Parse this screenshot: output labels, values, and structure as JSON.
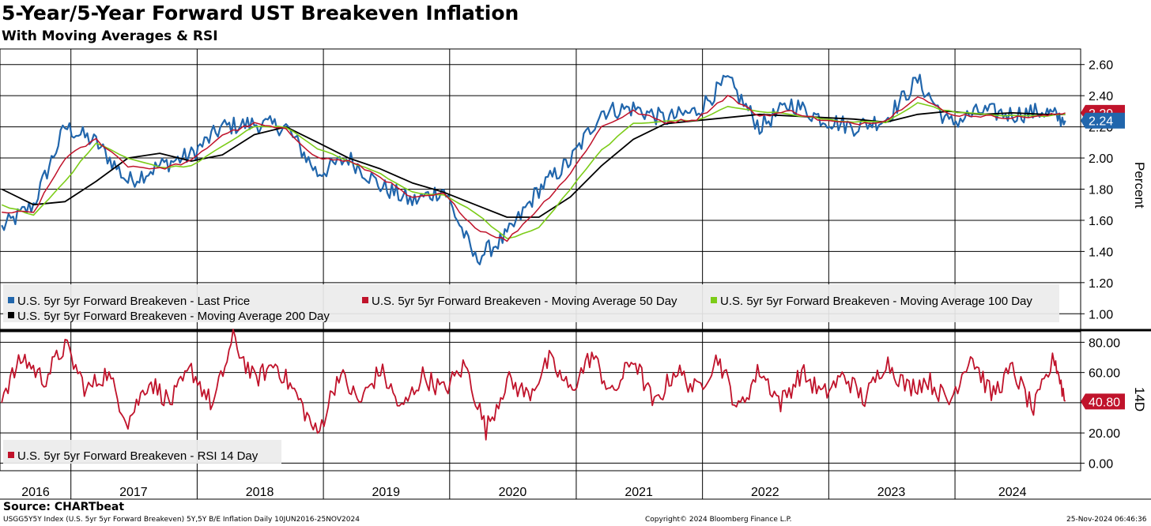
{
  "header": {
    "title": "5-Year/5-Year Forward UST Breakeven Inflation",
    "subtitle": "With Moving Averages & RSI"
  },
  "footer": {
    "source": "Source: CHARTbeat",
    "index_note": "USGG5Y5Y Index (U.S. 5yr 5yr Forward Breakeven) 5Y,5Y B/E Inflation  Daily 10JUN2016-25NOV2024",
    "copyright": "Copyright© 2024 Bloomberg Finance L.P.",
    "timestamp": "25-Nov-2024 06:46:36"
  },
  "colors": {
    "last_price": "#2166ac",
    "ma50": "#c0132b",
    "ma100": "#7ccc18",
    "ma200": "#000000",
    "rsi": "#c0132b",
    "legend_bg": "#ececec"
  },
  "chart_data": [
    {
      "type": "line",
      "panel": "price",
      "x_range": [
        "2016-06-10",
        "2024-11-25"
      ],
      "ylabel": "Percent",
      "ylim": [
        0.9,
        2.7
      ],
      "yticks": [
        "1.00",
        "1.20",
        "1.40",
        "1.60",
        "1.80",
        "2.00",
        "2.20",
        "2.40",
        "2.60"
      ],
      "grid": true,
      "legend_placement": "bottom-left",
      "series": [
        {
          "name": "U.S. 5yr 5yr Forward Breakeven - Last Price",
          "key": "last_price",
          "x": [
            "2016-06",
            "2016-09",
            "2016-12",
            "2017-03",
            "2017-06",
            "2017-09",
            "2017-12",
            "2018-03",
            "2018-06",
            "2018-09",
            "2018-12",
            "2019-03",
            "2019-06",
            "2019-09",
            "2019-12",
            "2020-03",
            "2020-06",
            "2020-09",
            "2020-12",
            "2021-03",
            "2021-06",
            "2021-09",
            "2021-12",
            "2022-03",
            "2022-06",
            "2022-09",
            "2022-12",
            "2023-03",
            "2023-06",
            "2023-09",
            "2023-12",
            "2024-03",
            "2024-06",
            "2024-09",
            "2024-11"
          ],
          "values": [
            1.55,
            1.7,
            2.2,
            2.1,
            1.85,
            1.95,
            2.02,
            2.2,
            2.22,
            2.2,
            1.9,
            2.0,
            1.82,
            1.72,
            1.8,
            1.35,
            1.5,
            1.8,
            1.98,
            2.3,
            2.32,
            2.25,
            2.3,
            2.5,
            2.2,
            2.35,
            2.25,
            2.2,
            2.25,
            2.5,
            2.22,
            2.3,
            2.28,
            2.3,
            2.24
          ]
        },
        {
          "name": "U.S. 5yr 5yr Forward Breakeven - Moving Average 50 Day",
          "key": "ma50",
          "x": [
            "2016-06",
            "2016-09",
            "2016-12",
            "2017-03",
            "2017-06",
            "2017-09",
            "2017-12",
            "2018-03",
            "2018-06",
            "2018-09",
            "2018-12",
            "2019-03",
            "2019-06",
            "2019-09",
            "2019-12",
            "2020-03",
            "2020-06",
            "2020-09",
            "2020-12",
            "2021-03",
            "2021-06",
            "2021-09",
            "2021-12",
            "2022-03",
            "2022-06",
            "2022-09",
            "2022-12",
            "2023-03",
            "2023-06",
            "2023-09",
            "2023-12",
            "2024-03",
            "2024-06",
            "2024-09",
            "2024-11"
          ],
          "values": [
            1.65,
            1.65,
            2.0,
            2.12,
            1.95,
            1.93,
            1.98,
            2.15,
            2.22,
            2.18,
            2.0,
            1.98,
            1.88,
            1.74,
            1.77,
            1.55,
            1.47,
            1.68,
            1.9,
            2.2,
            2.3,
            2.23,
            2.25,
            2.4,
            2.27,
            2.3,
            2.24,
            2.22,
            2.24,
            2.4,
            2.28,
            2.27,
            2.26,
            2.27,
            2.29
          ]
        },
        {
          "name": "U.S. 5yr 5yr Forward Breakeven - Moving Average 100 Day",
          "key": "ma100",
          "x": [
            "2016-06",
            "2016-09",
            "2016-12",
            "2017-03",
            "2017-06",
            "2017-09",
            "2017-12",
            "2018-03",
            "2018-06",
            "2018-09",
            "2018-12",
            "2019-03",
            "2019-06",
            "2019-09",
            "2019-12",
            "2020-03",
            "2020-06",
            "2020-09",
            "2020-12",
            "2021-03",
            "2021-06",
            "2021-09",
            "2021-12",
            "2022-03",
            "2022-06",
            "2022-09",
            "2022-12",
            "2023-03",
            "2023-06",
            "2023-09",
            "2023-12",
            "2024-03",
            "2024-06",
            "2024-09",
            "2024-11"
          ],
          "values": [
            1.7,
            1.63,
            1.85,
            2.1,
            2.0,
            1.94,
            1.95,
            2.08,
            2.2,
            2.2,
            2.06,
            1.98,
            1.9,
            1.78,
            1.76,
            1.65,
            1.48,
            1.55,
            1.8,
            2.05,
            2.22,
            2.24,
            2.24,
            2.33,
            2.3,
            2.28,
            2.25,
            2.23,
            2.23,
            2.35,
            2.3,
            2.28,
            2.27,
            2.27,
            2.28
          ]
        },
        {
          "name": "U.S. 5yr 5yr Forward Breakeven - Moving Average 200 Day",
          "key": "ma200",
          "x": [
            "2016-06",
            "2016-09",
            "2016-12",
            "2017-03",
            "2017-06",
            "2017-09",
            "2017-12",
            "2018-03",
            "2018-06",
            "2018-09",
            "2018-12",
            "2019-03",
            "2019-06",
            "2019-09",
            "2019-12",
            "2020-03",
            "2020-06",
            "2020-09",
            "2020-12",
            "2021-03",
            "2021-06",
            "2021-09",
            "2021-12",
            "2022-03",
            "2022-06",
            "2022-09",
            "2022-12",
            "2023-03",
            "2023-06",
            "2023-09",
            "2023-12",
            "2024-03",
            "2024-06",
            "2024-09",
            "2024-11"
          ],
          "values": [
            1.8,
            1.7,
            1.72,
            1.85,
            2.0,
            2.03,
            1.98,
            2.02,
            2.15,
            2.2,
            2.1,
            2.0,
            1.93,
            1.84,
            1.78,
            1.7,
            1.62,
            1.62,
            1.75,
            1.95,
            2.12,
            2.22,
            2.24,
            2.26,
            2.28,
            2.27,
            2.26,
            2.25,
            2.23,
            2.28,
            2.3,
            2.28,
            2.29,
            2.28,
            2.28
          ]
        }
      ],
      "last_value_labels": [
        {
          "key": "last_price",
          "text": "2.24",
          "value": 2.24
        },
        {
          "key": "ma50",
          "text": "2.29",
          "value": 2.29
        }
      ]
    },
    {
      "type": "line",
      "panel": "rsi",
      "x_range": [
        "2016-06-10",
        "2024-11-25"
      ],
      "ylabel": "14D",
      "ylim": [
        -5,
        87
      ],
      "yticks": [
        "0.00",
        "20.00",
        "40.00",
        "60.00",
        "80.00"
      ],
      "grid": true,
      "legend_placement": "bottom-left",
      "series": [
        {
          "name": "U.S. 5yr 5yr Forward Breakeven - RSI 14 Day",
          "key": "rsi",
          "x": [
            "2016-06",
            "2016-08",
            "2016-10",
            "2016-12",
            "2017-02",
            "2017-04",
            "2017-06",
            "2017-08",
            "2017-10",
            "2017-12",
            "2018-02",
            "2018-04",
            "2018-06",
            "2018-08",
            "2018-10",
            "2018-12",
            "2019-02",
            "2019-04",
            "2019-06",
            "2019-08",
            "2019-10",
            "2019-12",
            "2020-02",
            "2020-04",
            "2020-06",
            "2020-08",
            "2020-10",
            "2020-12",
            "2021-02",
            "2021-04",
            "2021-06",
            "2021-08",
            "2021-10",
            "2021-12",
            "2022-02",
            "2022-04",
            "2022-06",
            "2022-08",
            "2022-10",
            "2022-12",
            "2023-02",
            "2023-04",
            "2023-06",
            "2023-08",
            "2023-10",
            "2023-12",
            "2024-02",
            "2024-04",
            "2024-06",
            "2024-08",
            "2024-10",
            "2024-11"
          ],
          "values": [
            45,
            70,
            55,
            78,
            48,
            60,
            28,
            55,
            40,
            62,
            38,
            82,
            55,
            66,
            45,
            18,
            60,
            40,
            62,
            35,
            58,
            48,
            65,
            22,
            55,
            45,
            68,
            48,
            72,
            45,
            70,
            38,
            62,
            48,
            70,
            35,
            62,
            40,
            60,
            45,
            58,
            42,
            68,
            50,
            55,
            40,
            72,
            45,
            62,
            35,
            70,
            41
          ]
        }
      ],
      "last_value_labels": [
        {
          "key": "rsi",
          "text": "40.80",
          "value": 40.8
        }
      ]
    }
  ],
  "x_axis": {
    "year_labels": [
      "2016",
      "2017",
      "2018",
      "2019",
      "2020",
      "2021",
      "2022",
      "2023",
      "2024"
    ]
  }
}
